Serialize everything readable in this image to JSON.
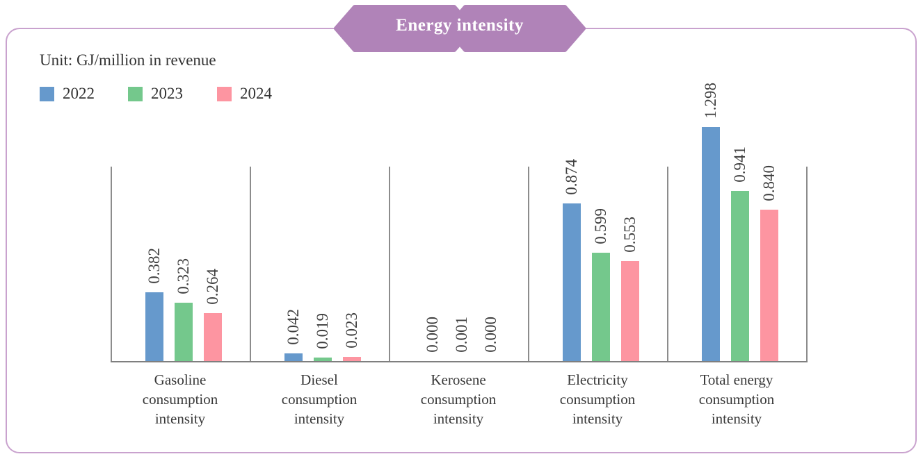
{
  "header": {
    "title": "Energy intensity",
    "banner_color": "#b083b8",
    "card_border_color": "#c9a2ce"
  },
  "unit_label": "Unit: GJ/million in revenue",
  "legend": [
    {
      "label": "2022",
      "color": "#6699cc"
    },
    {
      "label": "2023",
      "color": "#74c88c"
    },
    {
      "label": "2024",
      "color": "#fd95a1"
    }
  ],
  "chart_data": {
    "type": "bar",
    "title": "Energy intensity",
    "unit": "GJ/million in revenue",
    "grid": false,
    "legend_position": "top-left",
    "value_labels": "rotated-90-above-bars",
    "ylim": [
      0,
      1.4
    ],
    "categories": [
      {
        "name": "Gasoline consumption intensity",
        "lines": [
          "Gasoline",
          "consumption",
          "intensity"
        ]
      },
      {
        "name": "Diesel consumption intensity",
        "lines": [
          "Diesel",
          "consumption",
          "intensity"
        ]
      },
      {
        "name": "Kerosene consumption intensity",
        "lines": [
          "Kerosene",
          "consumption",
          "intensity"
        ]
      },
      {
        "name": "Electricity consumption intensity",
        "lines": [
          "Electricity",
          "consumption",
          "intensity"
        ]
      },
      {
        "name": "Total energy consumption intensity",
        "lines": [
          "Total energy",
          "consumption",
          "intensity"
        ]
      }
    ],
    "series": [
      {
        "name": "2022",
        "color": "#6699cc",
        "values": [
          0.382,
          0.042,
          0.0,
          0.874,
          1.298
        ],
        "labels": [
          "0.382",
          "0.042",
          "0.000",
          "0.874",
          "1.298"
        ]
      },
      {
        "name": "2023",
        "color": "#74c88c",
        "values": [
          0.323,
          0.019,
          0.001,
          0.599,
          0.941
        ],
        "labels": [
          "0.323",
          "0.019",
          "0.001",
          "0.599",
          "0.941"
        ]
      },
      {
        "name": "2024",
        "color": "#fd95a1",
        "values": [
          0.264,
          0.023,
          0.0,
          0.553,
          0.84
        ],
        "labels": [
          "0.264",
          "0.023",
          "0.000",
          "0.553",
          "0.840"
        ]
      }
    ]
  }
}
